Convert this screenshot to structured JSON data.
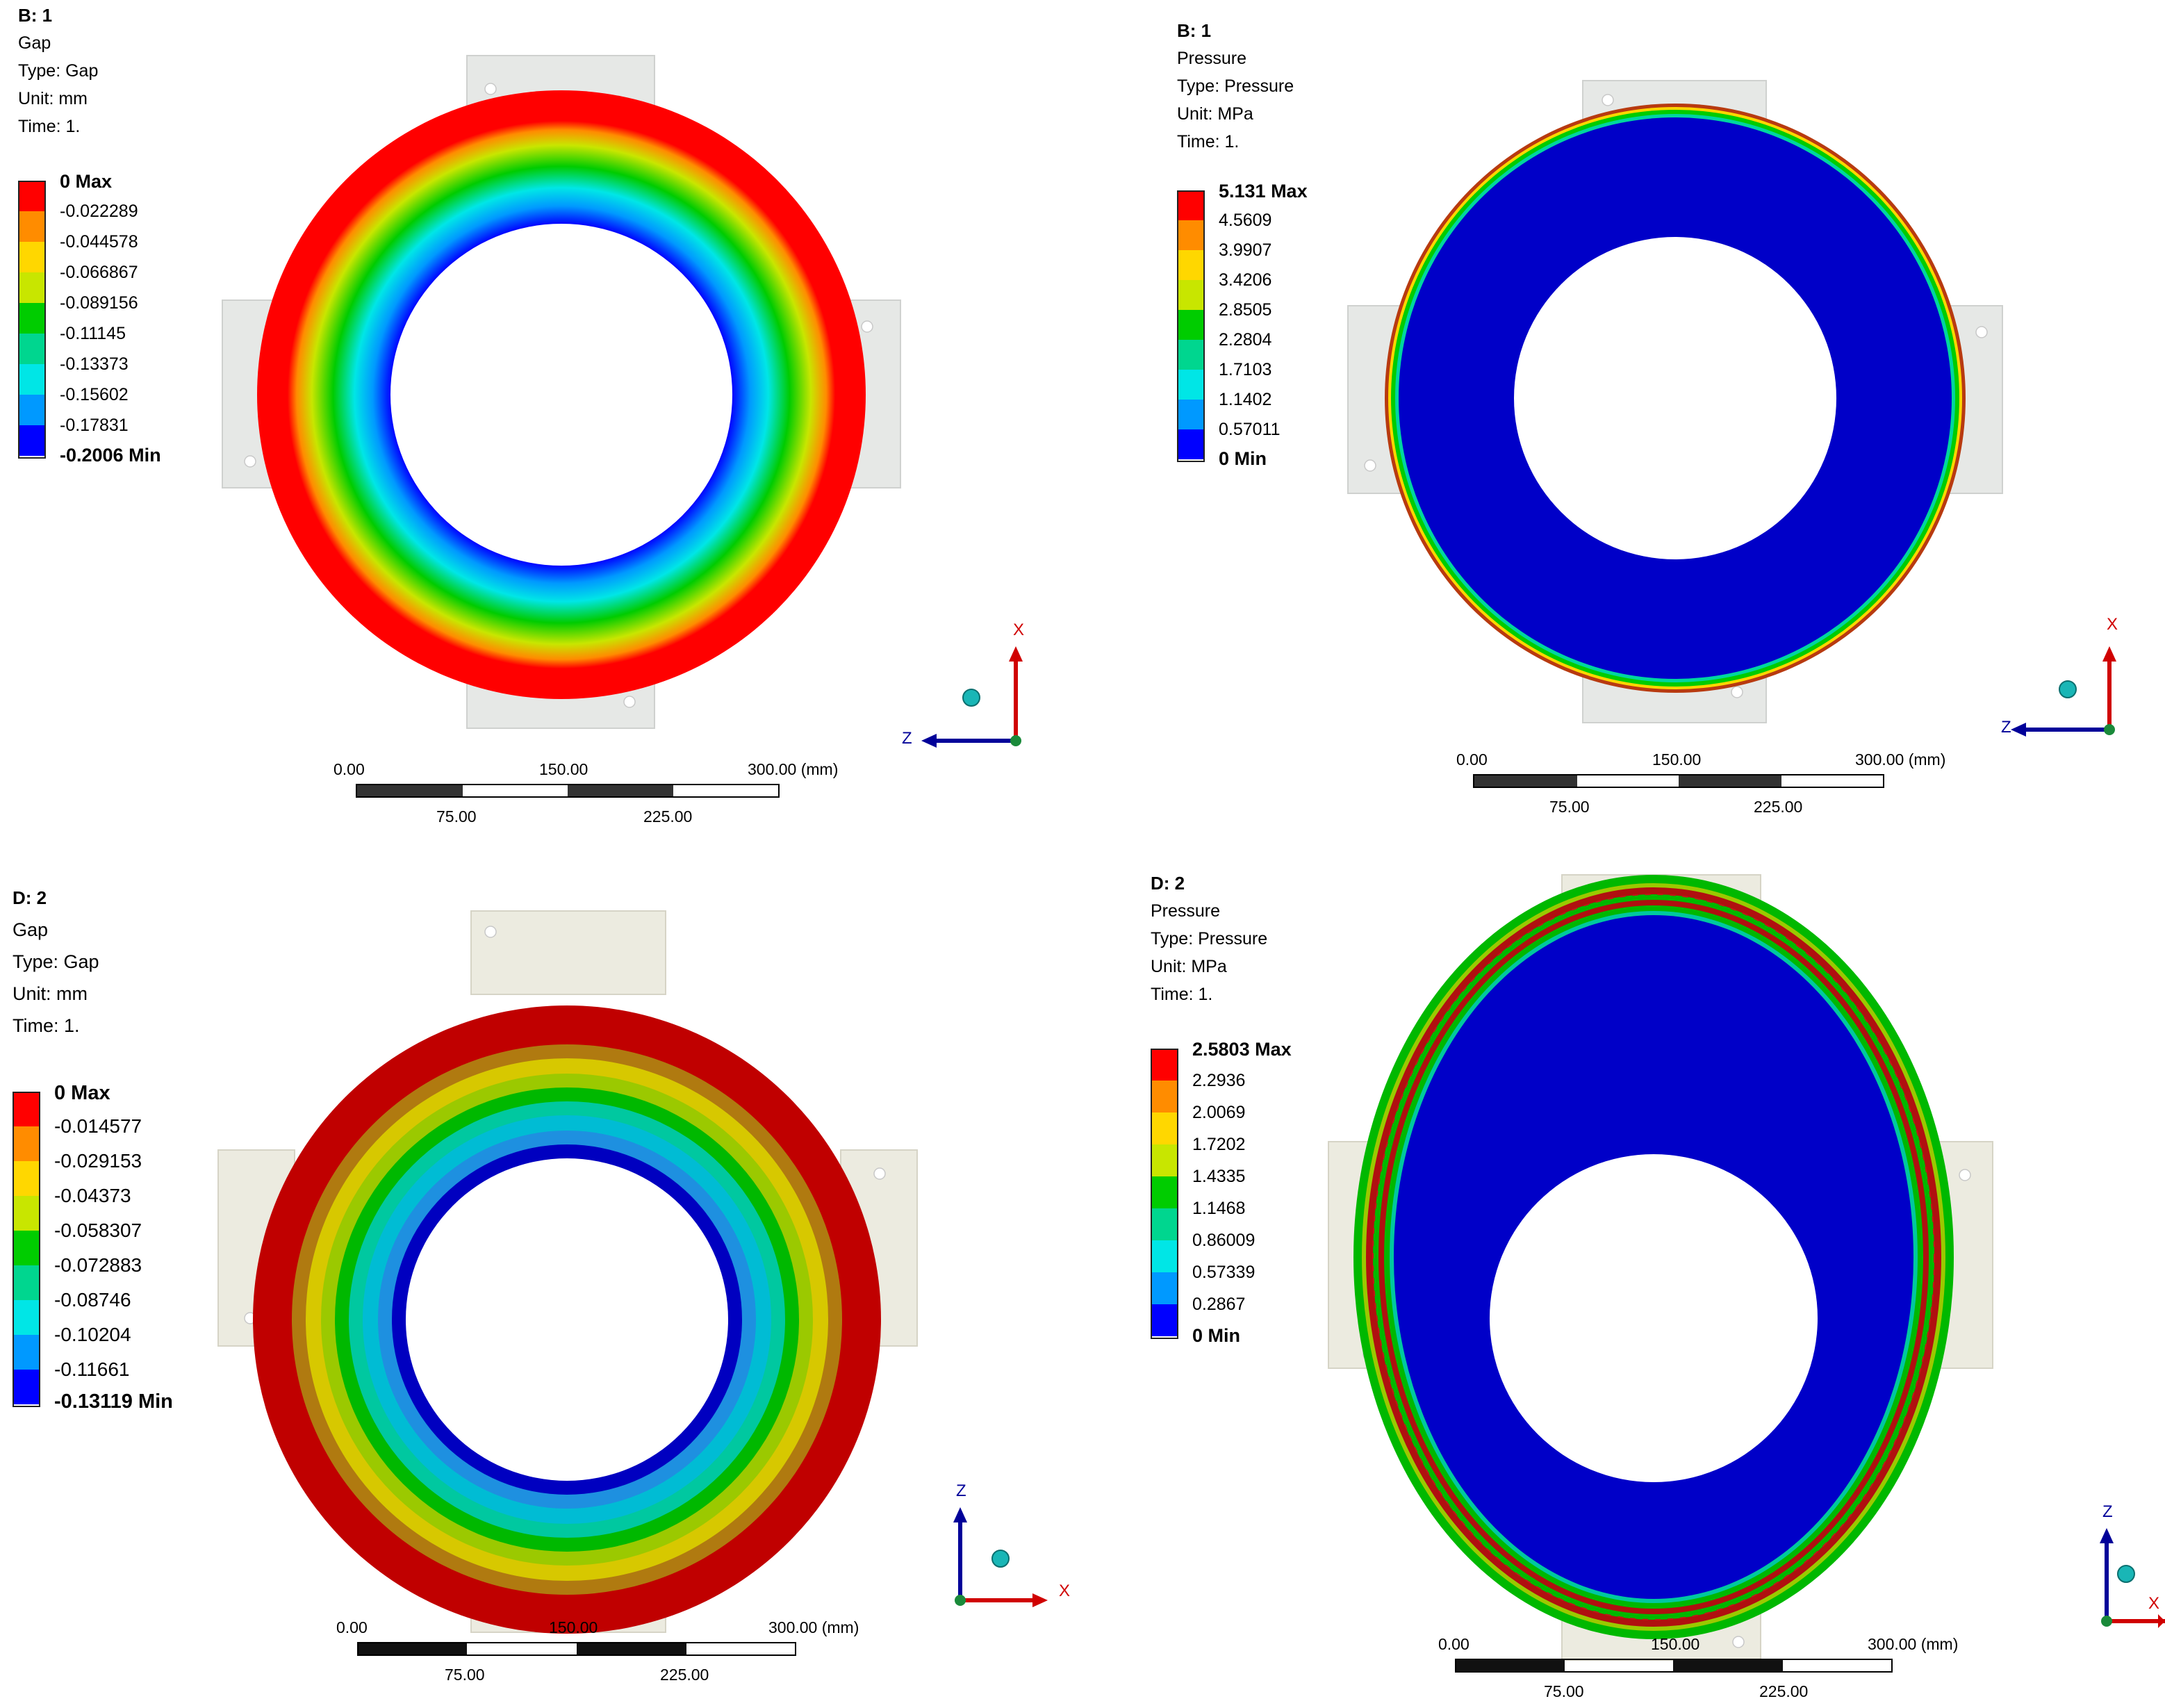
{
  "panels": [
    {
      "id": "b1-gap",
      "title": "B: 1",
      "lines": [
        "Gap",
        "Type: Gap",
        "Unit: mm",
        "Time: 1."
      ],
      "legend": [
        "0 Max",
        "-0.022289",
        "-0.044578",
        "-0.066867",
        "-0.089156",
        "-0.11145",
        "-0.13373",
        "-0.15602",
        "-0.17831",
        "-0.2006 Min"
      ],
      "colors": [
        "#ff0000",
        "#ff8c00",
        "#ffd700",
        "#c8e600",
        "#00cc00",
        "#00d68f",
        "#00e6e6",
        "#0099ff",
        "#0000ff"
      ],
      "scale": {
        "t0": "0.00",
        "t150": "150.00",
        "t300": "300.00 (mm)",
        "t75": "75.00",
        "t225": "225.00"
      },
      "triad": {
        "a": "X",
        "b": "Z"
      }
    },
    {
      "id": "b1-pressure",
      "title": "B: 1",
      "lines": [
        "Pressure",
        "Type: Pressure",
        "Unit: MPa",
        "Time: 1."
      ],
      "legend": [
        "5.131 Max",
        "4.5609",
        "3.9907",
        "3.4206",
        "2.8505",
        "2.2804",
        "1.7103",
        "1.1402",
        "0.57011",
        "0 Min"
      ],
      "colors": [
        "#ff0000",
        "#ff8c00",
        "#ffd700",
        "#c8e600",
        "#00cc00",
        "#00d68f",
        "#00e6e6",
        "#0099ff",
        "#0000ff"
      ],
      "scale": {
        "t0": "0.00",
        "t150": "150.00",
        "t300": "300.00 (mm)",
        "t75": "75.00",
        "t225": "225.00"
      },
      "triad": {
        "a": "X",
        "b": "Z"
      }
    },
    {
      "id": "d2-gap",
      "title": "D: 2",
      "lines": [
        "Gap",
        "Type: Gap",
        "Unit: mm",
        "Time: 1."
      ],
      "legend": [
        "0 Max",
        "-0.014577",
        "-0.029153",
        "-0.04373",
        "-0.058307",
        "-0.072883",
        "-0.08746",
        "-0.10204",
        "-0.11661",
        "-0.13119 Min"
      ],
      "colors": [
        "#ff0000",
        "#ff8c00",
        "#ffd700",
        "#c8e600",
        "#00cc00",
        "#00d68f",
        "#00e6e6",
        "#0099ff",
        "#0000ff"
      ],
      "scale": {
        "t0": "0.00",
        "t150": "150.00",
        "t300": "300.00 (mm)",
        "t75": "75.00",
        "t225": "225.00"
      },
      "triad": {
        "a": "Z",
        "b": "X"
      }
    },
    {
      "id": "d2-pressure",
      "title": "D: 2",
      "lines": [
        "Pressure",
        "Type: Pressure",
        "Unit: MPa",
        "Time: 1."
      ],
      "legend": [
        "2.5803 Max",
        "2.2936",
        "2.0069",
        "1.7202",
        "1.4335",
        "1.1468",
        "0.86009",
        "0.57339",
        "0.2867",
        "0 Min"
      ],
      "colors": [
        "#ff0000",
        "#ff8c00",
        "#ffd700",
        "#c8e600",
        "#00cc00",
        "#00d68f",
        "#00e6e6",
        "#0099ff",
        "#0000ff"
      ],
      "scale": {
        "t0": "0.00",
        "t150": "150.00",
        "t300": "300.00 (mm)",
        "t75": "75.00",
        "t225": "225.00"
      },
      "triad": {
        "a": "Z",
        "b": "X"
      }
    }
  ]
}
